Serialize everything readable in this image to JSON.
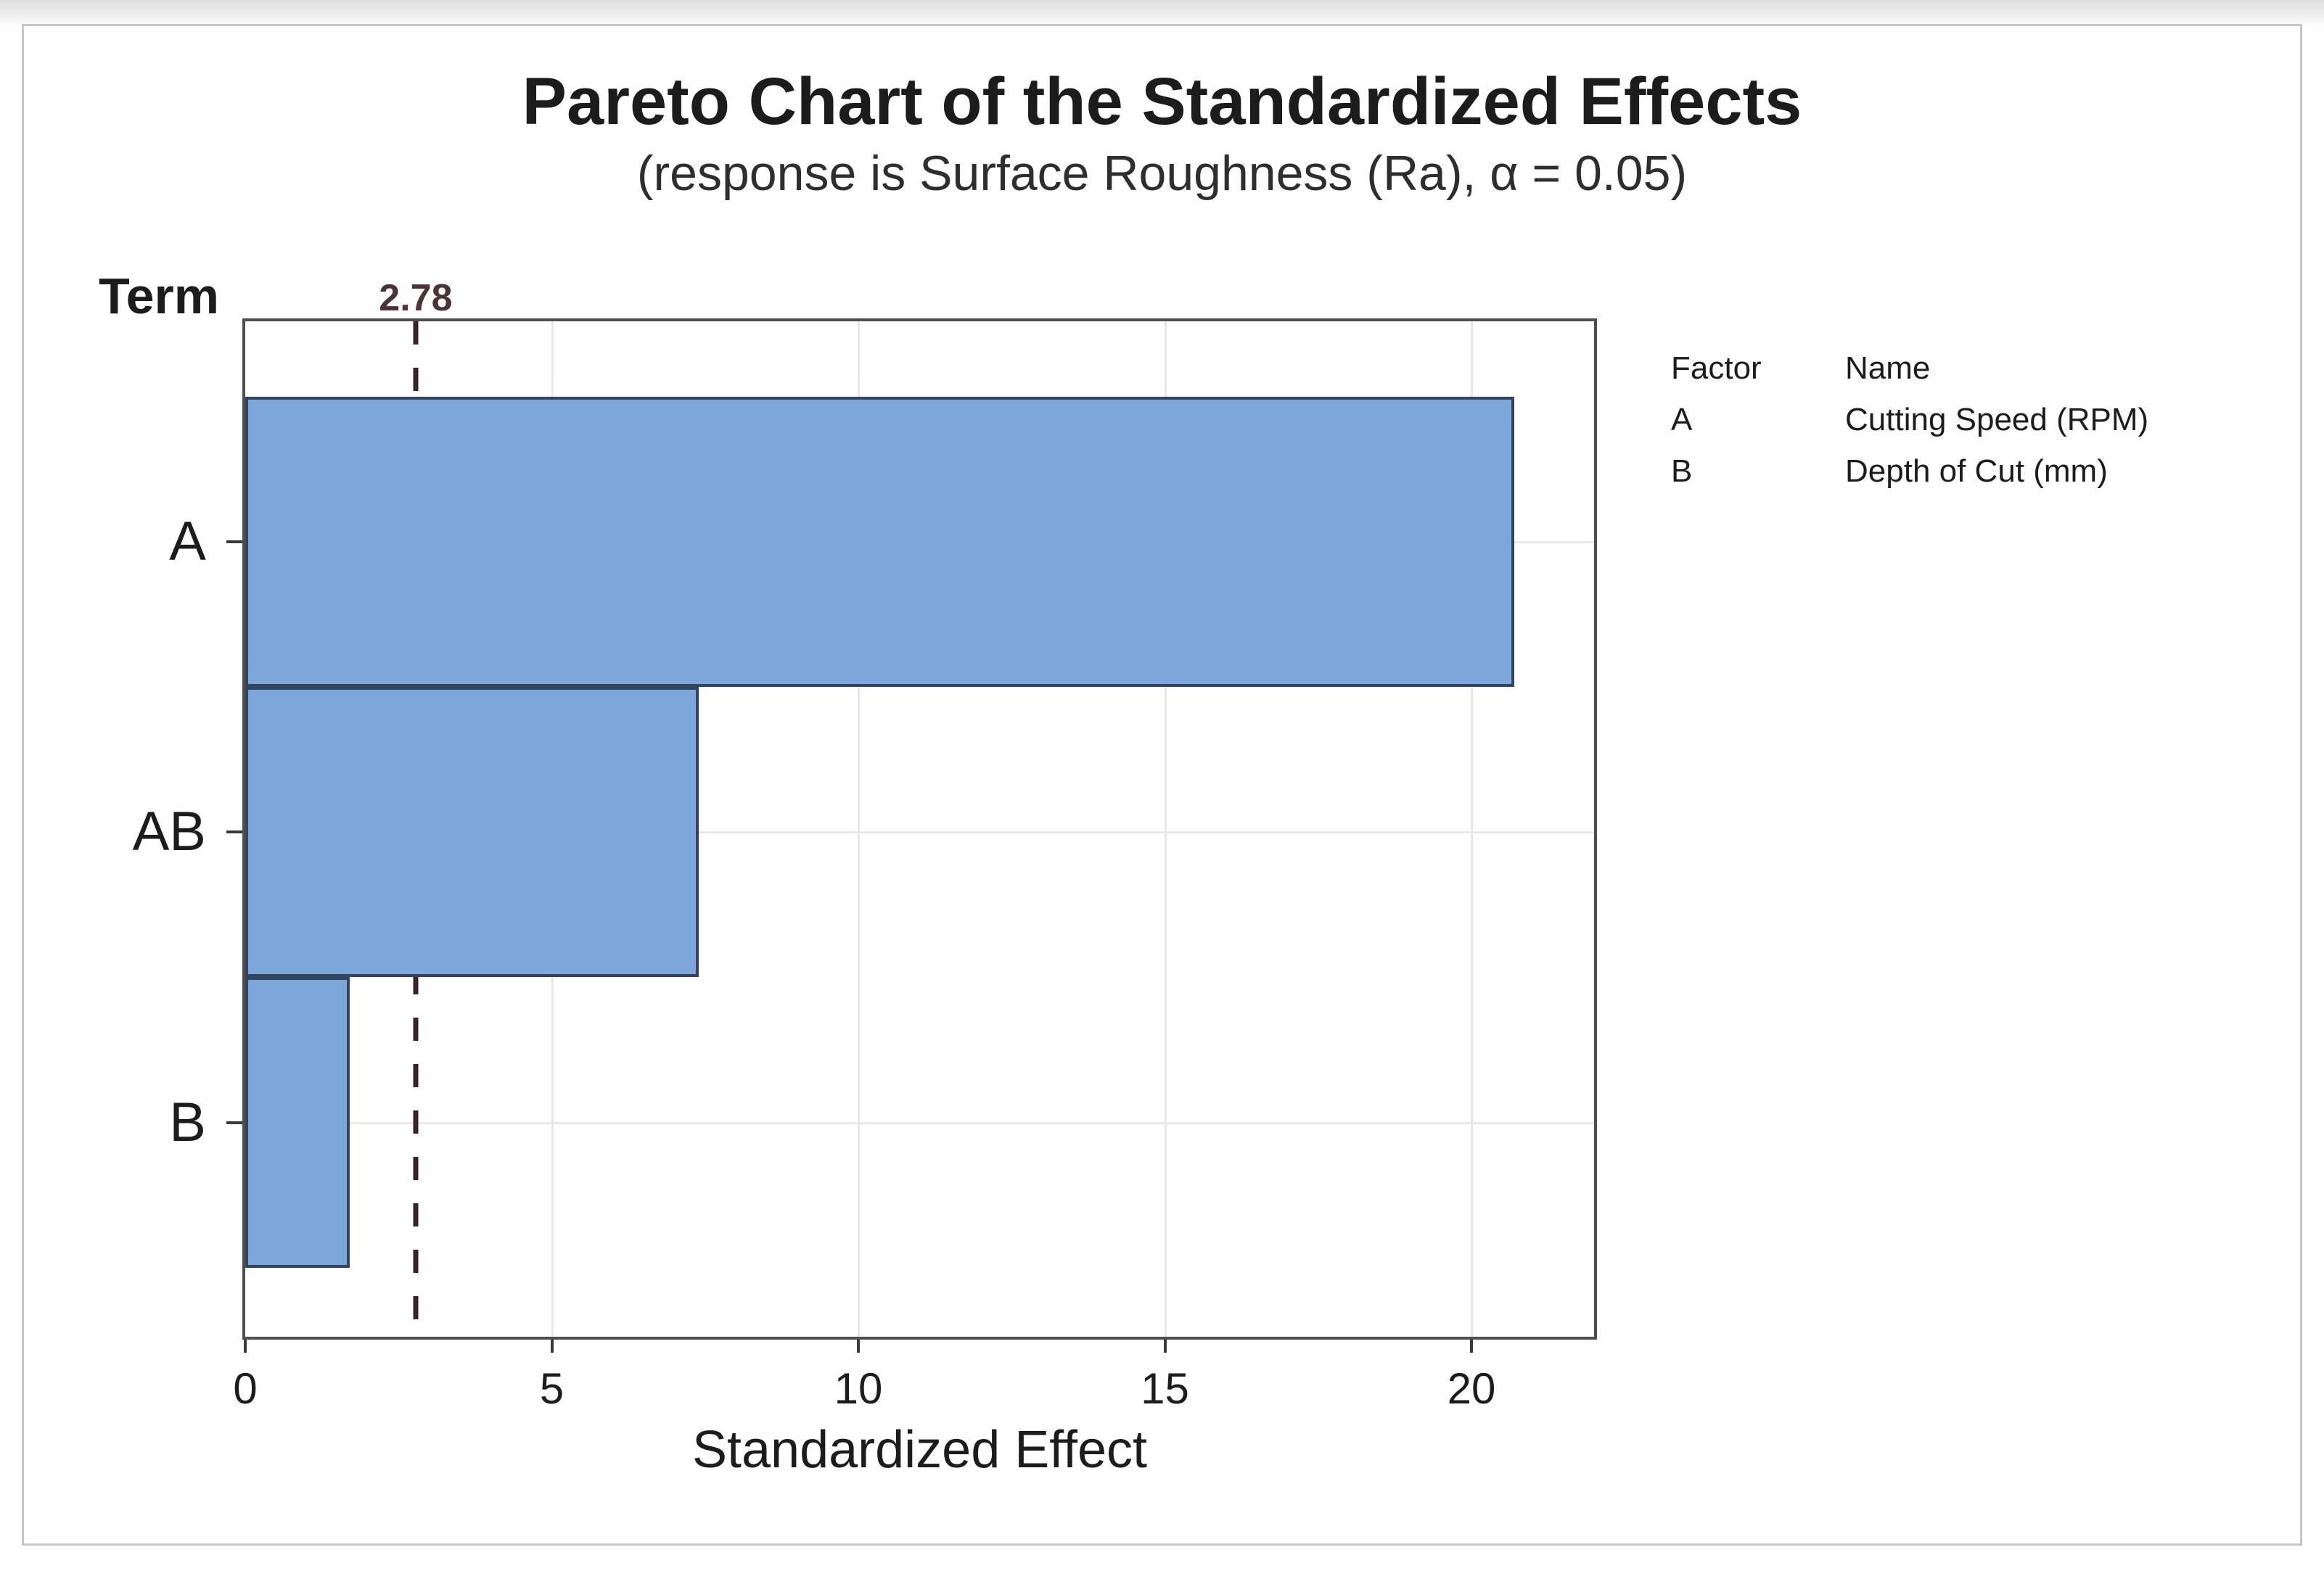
{
  "chart_data": {
    "type": "bar",
    "orientation": "horizontal",
    "title": "Pareto Chart of the Standardized Effects",
    "subtitle": "(response is Surface Roughness (Ra), α = 0.05)",
    "xlabel": "Standardized Effect",
    "ylabel": "Term",
    "categories": [
      "A",
      "AB",
      "B"
    ],
    "values": [
      20.7,
      7.4,
      1.7
    ],
    "xlim": [
      0,
      22
    ],
    "x_tick_values": [
      0,
      5,
      10,
      15,
      20
    ],
    "x_tick_labels": [
      "0",
      "5",
      "10",
      "15",
      "20"
    ],
    "reference_line": 2.78,
    "reference_label": "2.78",
    "grid": true,
    "bars_touch": true,
    "legend": {
      "headers": [
        "Factor",
        "Name"
      ],
      "rows": [
        [
          "A",
          "Cutting Speed (RPM)"
        ],
        [
          "B",
          "Depth of Cut (mm)"
        ]
      ]
    }
  },
  "colors": {
    "bar_fill": "#7da7db",
    "bar_border": "#32455f",
    "plot_border": "#4e4e4e",
    "gridline": "#e8e8e8",
    "reference_line": "#3a2328",
    "reference_label": "#4b3338",
    "text": "#1c1c1c",
    "subtitle_text": "#2e2e2e",
    "frame_border": "#c6c6c6"
  },
  "layout": {
    "top_pad_pct": 7.4,
    "bar_band_pct": 28.6
  }
}
